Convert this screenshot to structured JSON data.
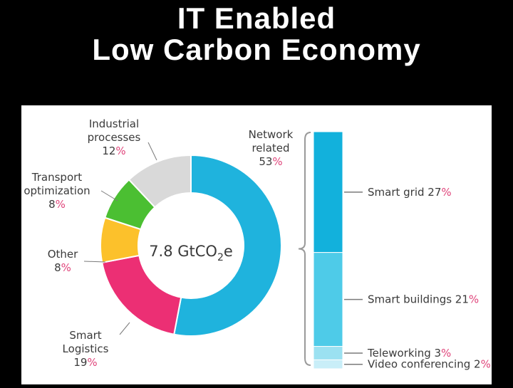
{
  "title": {
    "line1": "IT Enabled",
    "line2": "Low Carbon Economy"
  },
  "chart_data": {
    "type": "pie",
    "center_label": "7.8 GtCO",
    "center_label_sub": "2",
    "center_label_end": "e",
    "slices": [
      {
        "name_lines": [
          "Network",
          "related"
        ],
        "value": 53,
        "value_text": "53",
        "color": "#1fb3dd"
      },
      {
        "name_lines": [
          "Smart",
          "Logistics"
        ],
        "value": 19,
        "value_text": "19",
        "color": "#ec2f74"
      },
      {
        "name_lines": [
          "Other"
        ],
        "value": 8,
        "value_text": "8",
        "color": "#fcc12b"
      },
      {
        "name_lines": [
          "Transport",
          "optimization"
        ],
        "value": 8,
        "value_text": "8",
        "color": "#4bbf32"
      },
      {
        "name_lines": [
          "Industrial",
          "processes"
        ],
        "value": 12,
        "value_text": "12",
        "color": "#d9d9d9"
      }
    ],
    "breakdown": {
      "parent": "Network related",
      "segments": [
        {
          "name": "Smart grid",
          "value": 27,
          "value_text": "27",
          "color": "#12b1dc"
        },
        {
          "name": "Smart buildings",
          "value": 21,
          "value_text": "21",
          "color": "#4ecbe8"
        },
        {
          "name": "Teleworking",
          "value": 3,
          "value_text": "3",
          "color": "#9be1f1"
        },
        {
          "name": "Video conferencing",
          "value": 2,
          "value_text": "2",
          "color": "#c9eef8"
        }
      ]
    },
    "percent_sign": "%",
    "percent_color": "#e0457b",
    "label_color": "#3a3a3a"
  }
}
